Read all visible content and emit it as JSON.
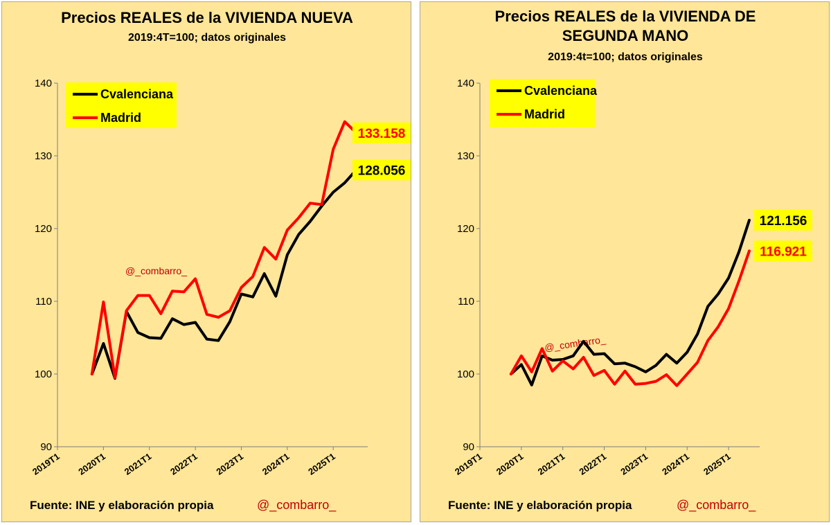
{
  "colors": {
    "background": "#ffe699",
    "border": "#a6a6a6",
    "legend_bg": "#ffff00",
    "series_cvalenciana": "#000000",
    "series_madrid": "#ff0000",
    "handle": "#c00000"
  },
  "chart_data": [
    {
      "type": "line",
      "title": "Precios REALES de la VIVIENDA NUEVA",
      "subtitle": "2019:4T=100; datos originales",
      "xlabel": "",
      "ylabel": "",
      "ylim": [
        90,
        140
      ],
      "yticks": [
        90,
        100,
        110,
        120,
        130,
        140
      ],
      "x_range": [
        0,
        27
      ],
      "xticks": [
        {
          "label": "2019T1",
          "x": 0
        },
        {
          "label": "2020T1",
          "x": 4
        },
        {
          "label": "2021T1",
          "x": 8
        },
        {
          "label": "2022T1",
          "x": 12
        },
        {
          "label": "2023T1",
          "x": 16
        },
        {
          "label": "2024T1",
          "x": 20
        },
        {
          "label": "2025T1",
          "x": 24
        }
      ],
      "x_start": 3,
      "series": [
        {
          "name": "Cvalenciana",
          "color": "#000000",
          "values": [
            100,
            104.2,
            99.4,
            108.6,
            105.7,
            105.0,
            104.9,
            107.6,
            106.8,
            107.1,
            104.8,
            104.6,
            107.2,
            111.0,
            110.6,
            113.8,
            110.7,
            116.4,
            119.2,
            121.0,
            123.1,
            125.0,
            126.3,
            128.056
          ]
        },
        {
          "name": "Madrid",
          "color": "#ff0000",
          "values": [
            100,
            109.9,
            99.5,
            108.7,
            110.8,
            110.8,
            108.3,
            111.4,
            111.3,
            113.1,
            108.2,
            107.8,
            108.7,
            111.9,
            113.4,
            117.4,
            115.8,
            119.8,
            121.5,
            123.5,
            123.3,
            130.9,
            134.7,
            133.158
          ]
        }
      ],
      "end_labels": [
        {
          "text": "133.158",
          "series": "Madrid",
          "color": "#ff0000"
        },
        {
          "text": "128.056",
          "series": "Cvalenciana",
          "color": "#000000"
        }
      ],
      "legend": [
        "Cvalenciana",
        "Madrid"
      ],
      "legend_position": "top-left",
      "watermark": "@_combarro_",
      "footer_source": "Fuente: INE y elaboración propia",
      "footer_handle": "@_combarro_",
      "grid": false
    },
    {
      "type": "line",
      "title": "Precios REALES de la VIVIENDA DE",
      "title_line2": "SEGUNDA MANO",
      "subtitle": "2019:4t=100; datos originales",
      "xlabel": "",
      "ylabel": "",
      "ylim": [
        90,
        140
      ],
      "yticks": [
        90,
        100,
        110,
        120,
        130,
        140
      ],
      "x_range": [
        0,
        27
      ],
      "xticks": [
        {
          "label": "2019T1",
          "x": 0
        },
        {
          "label": "2020T1",
          "x": 4
        },
        {
          "label": "2021T1",
          "x": 8
        },
        {
          "label": "2022T1",
          "x": 12
        },
        {
          "label": "2023T1",
          "x": 16
        },
        {
          "label": "2024T1",
          "x": 20
        },
        {
          "label": "2025T1",
          "x": 24
        }
      ],
      "x_start": 3,
      "series": [
        {
          "name": "Cvalenciana",
          "color": "#000000",
          "values": [
            100,
            101.3,
            98.5,
            102.5,
            101.9,
            102.0,
            102.5,
            104.5,
            102.7,
            102.8,
            101.4,
            101.5,
            101.0,
            100.3,
            101.2,
            102.7,
            101.5,
            103.0,
            105.5,
            109.3,
            111.0,
            113.2,
            116.8,
            121.156
          ]
        },
        {
          "name": "Madrid",
          "color": "#ff0000",
          "values": [
            100,
            102.5,
            100.3,
            103.5,
            100.4,
            101.8,
            100.7,
            102.3,
            99.8,
            100.5,
            98.6,
            100.4,
            98.6,
            98.7,
            99.0,
            99.9,
            98.4,
            100.0,
            101.6,
            104.6,
            106.5,
            109.0,
            112.8,
            116.921
          ]
        }
      ],
      "end_labels": [
        {
          "text": "121.156",
          "series": "Cvalenciana",
          "color": "#000000"
        },
        {
          "text": "116.921",
          "series": "Madrid",
          "color": "#ff0000"
        }
      ],
      "legend": [
        "Cvalenciana",
        "Madrid"
      ],
      "legend_position": "top-left",
      "watermark": "@_combarro_",
      "footer_source": "Fuente: INE y elaboración propia",
      "footer_handle": "@_combarro_",
      "grid": false
    }
  ]
}
